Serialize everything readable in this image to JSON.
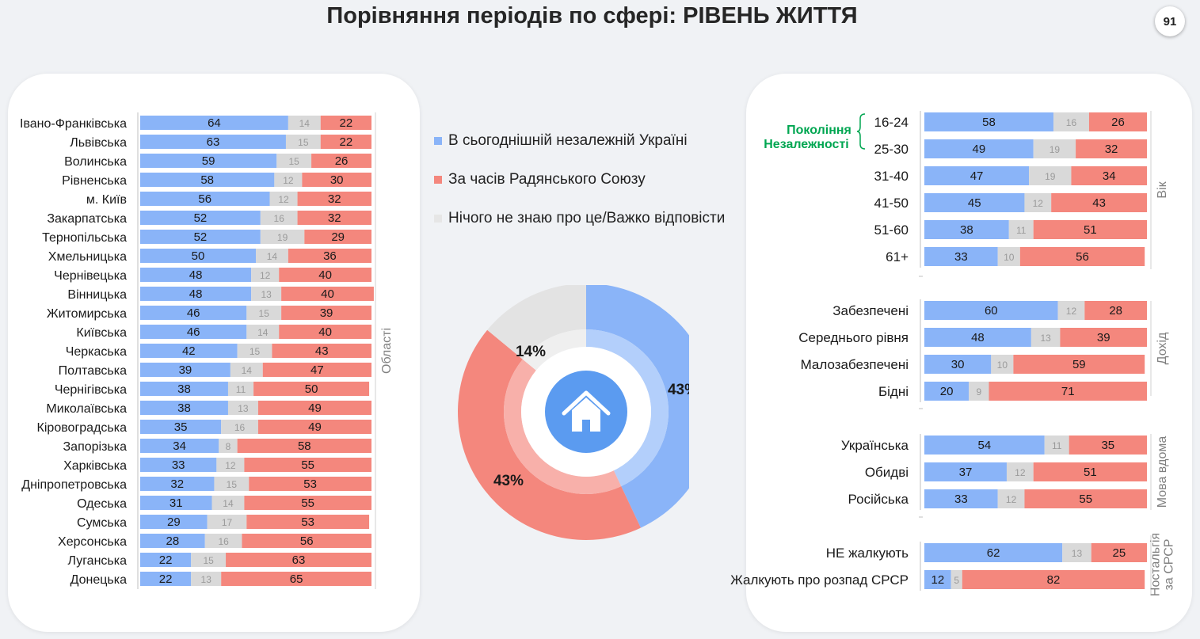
{
  "title": "Порівняння періодів по сфері: РІВЕНЬ ЖИТТЯ",
  "page_number": "91",
  "colors": {
    "today": "#8ab4f8",
    "soviet": "#f4877d",
    "dontknow": "#d9d9d9",
    "generation": "#00a651"
  },
  "legend": [
    {
      "label": "В сьогоднішній незалежній Україні",
      "color": "#8ab4f8"
    },
    {
      "label": "За часів Радянського Союзу",
      "color": "#f4877d"
    },
    {
      "label": "Нічого не знаю про це/Важко відповісти",
      "color": "#e6e6e6"
    }
  ],
  "donut": {
    "center_icon": "house-icon",
    "values": [
      {
        "label": "43%",
        "value": 43,
        "series": "today"
      },
      {
        "label": "43%",
        "value": 43,
        "series": "soviet"
      },
      {
        "label": "14%",
        "value": 14,
        "series": "dontknow"
      }
    ]
  },
  "chart_data": [
    {
      "type": "bar",
      "stacked": true,
      "orientation": "horizontal",
      "group_label": "Області",
      "series_names": [
        "В сьогоднішній незалежній Україні",
        "Нічого не знаю про це/Важко відповісти",
        "За часів Радянського Союзу"
      ],
      "categories": [
        "Івано-Франківська",
        "Львівська",
        "Волинська",
        "Рівненська",
        "м. Київ",
        "Закарпатська",
        "Тернопільська",
        "Хмельницька",
        "Чернівецька",
        "Вінницька",
        "Житомирська",
        "Київська",
        "Черкаська",
        "Полтавська",
        "Чернігівська",
        "Миколаївська",
        "Кіровоградська",
        "Запорізька",
        "Харківська",
        "Дніпропетровська",
        "Одеська",
        "Сумська",
        "Херсонська",
        "Луганська",
        "Донецька"
      ],
      "series": [
        {
          "name": "В сьогоднішній незалежній Україні",
          "key": "today",
          "values": [
            64,
            63,
            59,
            58,
            56,
            52,
            52,
            50,
            48,
            48,
            46,
            46,
            42,
            39,
            38,
            38,
            35,
            34,
            33,
            32,
            31,
            29,
            28,
            22,
            22
          ]
        },
        {
          "name": "Нічого не знаю про це/Важко відповісти",
          "key": "dontknow",
          "values": [
            14,
            15,
            15,
            12,
            12,
            16,
            19,
            14,
            12,
            13,
            15,
            14,
            15,
            14,
            11,
            13,
            16,
            8,
            12,
            15,
            14,
            17,
            16,
            15,
            13
          ]
        },
        {
          "name": "За часів Радянського Союзу",
          "key": "soviet",
          "values": [
            22,
            22,
            26,
            30,
            32,
            32,
            29,
            36,
            40,
            40,
            39,
            40,
            43,
            47,
            50,
            49,
            49,
            58,
            55,
            53,
            55,
            53,
            56,
            63,
            65
          ]
        }
      ]
    },
    {
      "type": "bar",
      "stacked": true,
      "orientation": "horizontal",
      "generation_label": [
        "Покоління",
        "Незалежності"
      ],
      "groups": [
        {
          "label": [
            "Вік"
          ],
          "categories": [
            "16-24",
            "25-30",
            "31-40",
            "41-50",
            "51-60",
            "61+"
          ],
          "today": [
            58,
            49,
            47,
            45,
            38,
            33
          ],
          "dontknow": [
            16,
            19,
            19,
            12,
            11,
            10
          ],
          "soviet": [
            26,
            32,
            34,
            43,
            51,
            56
          ]
        },
        {
          "label": [
            "Дохід"
          ],
          "categories": [
            "Забезпечені",
            "Середнього рівня",
            "Малозабезпечені",
            "Бідні"
          ],
          "today": [
            60,
            48,
            30,
            20
          ],
          "dontknow": [
            12,
            13,
            10,
            9
          ],
          "soviet": [
            28,
            39,
            59,
            71
          ]
        },
        {
          "label": [
            "Мова вдома"
          ],
          "categories": [
            "Українська",
            "Обидві",
            "Російська"
          ],
          "today": [
            54,
            37,
            33
          ],
          "dontknow": [
            11,
            12,
            12
          ],
          "soviet": [
            35,
            51,
            55
          ]
        },
        {
          "label": [
            "Ностальгія",
            "за СРСР"
          ],
          "categories": [
            "НЕ жалкують",
            "Жалкують про розпад СРСР"
          ],
          "today": [
            62,
            12
          ],
          "dontknow": [
            13,
            5
          ],
          "soviet": [
            25,
            82
          ]
        }
      ]
    }
  ]
}
